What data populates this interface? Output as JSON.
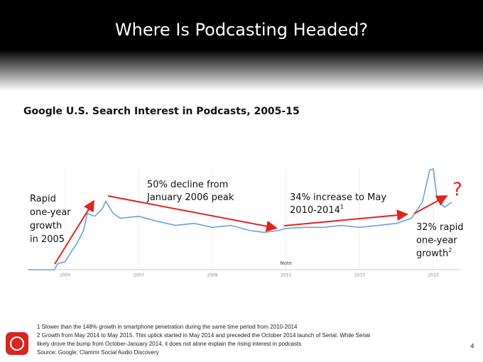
{
  "header": {
    "title": "Where Is Podcasting Headed?"
  },
  "chart_data": {
    "type": "line",
    "title": "Google U.S. Search Interest in Podcasts, 2005-15",
    "x": [
      2004.0,
      2004.7,
      2004.8,
      2005.0,
      2005.2,
      2005.3,
      2005.5,
      2005.6,
      2005.8,
      2006.0,
      2006.1,
      2006.3,
      2006.5,
      2007.0,
      2007.5,
      2008.0,
      2008.5,
      2009.0,
      2009.5,
      2010.0,
      2010.4,
      2010.8,
      2011.0,
      2011.5,
      2012.0,
      2012.5,
      2013.0,
      2013.5,
      2014.0,
      2014.4,
      2014.7,
      2014.9,
      2015.0,
      2015.1,
      2015.3,
      2015.5
    ],
    "values": [
      0,
      0,
      6,
      8,
      20,
      25,
      39,
      56,
      53,
      60,
      68,
      56,
      51,
      53,
      48,
      44,
      46,
      42,
      44,
      39,
      37,
      39,
      41,
      42,
      42,
      44,
      42,
      44,
      46,
      51,
      67,
      99,
      100,
      70,
      62,
      67
    ],
    "color": "#6b9fd9",
    "xlim": [
      2004,
      2015.75
    ],
    "xticks": [
      2005,
      2007,
      2009,
      2011,
      2013,
      2015
    ],
    "ylim": [
      0,
      100
    ],
    "grid": true,
    "note_label": "Note",
    "annotations": [
      {
        "lines": [
          "Rapid",
          "one-year",
          "growth",
          "in 2005"
        ]
      },
      {
        "lines": [
          "50% decline from",
          "January 2006 peak"
        ]
      },
      {
        "lines": [
          "34% increase to May",
          "2010-2014"
        ],
        "sup": "1"
      },
      {
        "lines": [
          "32% rapid",
          "one-year",
          "growth"
        ],
        "sup": "2"
      }
    ],
    "question_mark": "?"
  },
  "footnotes": [
    "1 Slower than the 148% growth in smartphone penetration during the same time period from 2010-2014",
    "2 Growth from May 2014 to May 2015. This uptick started in May 2014 and preceded the October 2014 launch of Serial. While Serial",
    "likely drove the bump from October-January 2014, it does not alone explain the rising interest in podcasts",
    "Source: Google; Clammr Social Audio Discovery"
  ],
  "page_number": "4"
}
